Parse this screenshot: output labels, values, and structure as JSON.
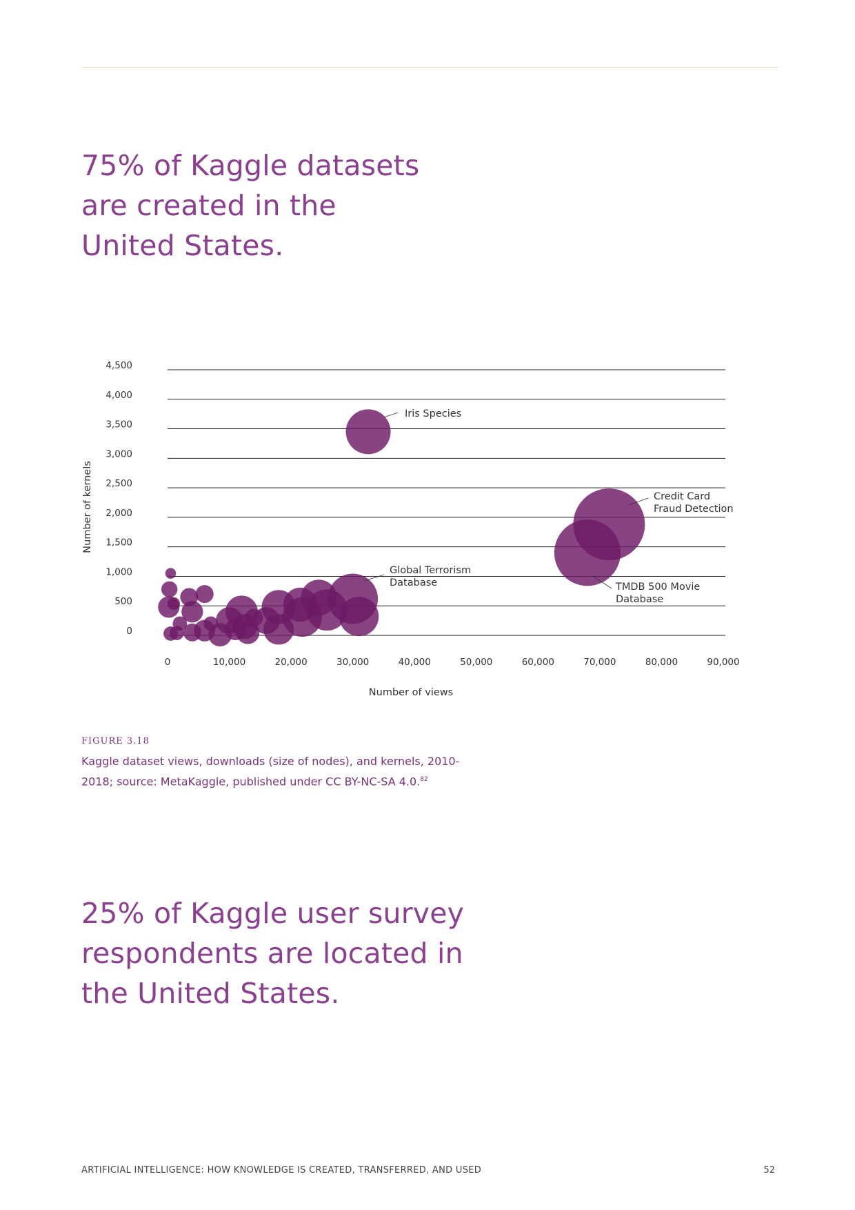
{
  "headline_1": [
    "75% of Kaggle datasets",
    "are created in the",
    "United States."
  ],
  "headline_2": [
    "25% of Kaggle user survey",
    "respondents are located in",
    "the United States."
  ],
  "figure": {
    "label": "FIGURE 3.18",
    "caption": [
      "Kaggle dataset views, downloads (size of nodes), and kernels, 2010-",
      "2018; source: MetaKaggle, published under CC BY-NC-SA 4.0.",
      "82"
    ]
  },
  "footer": {
    "title": "ARTIFICIAL INTELLIGENCE: HOW KNOWLEDGE IS CREATED, TRANSFERRED, AND USED",
    "page_number": "52"
  },
  "colors": {
    "headline": "#8a3f8f",
    "bubble": "#6e1a66",
    "caption": "#7a3378",
    "rule": "#f3d6c4"
  },
  "chart_data": {
    "type": "scatter",
    "xlabel": "Number of views",
    "ylabel": "Number of kernels",
    "xlim": [
      0,
      90000
    ],
    "ylim": [
      0,
      4500
    ],
    "xticks": [
      0,
      10000,
      20000,
      30000,
      40000,
      50000,
      60000,
      70000,
      80000,
      90000
    ],
    "xtick_labels": [
      "0",
      "10,000",
      "20,000",
      "30,000",
      "40,000",
      "50,000",
      "60,000",
      "70,000",
      "80,000",
      "90,000"
    ],
    "yticks": [
      0,
      500,
      1000,
      1500,
      2000,
      2500,
      3000,
      3500,
      4000,
      4500
    ],
    "ytick_labels": [
      "0",
      "500",
      "1,000",
      "1,500",
      "2,000",
      "2,500",
      "3,000",
      "3,500",
      "4,000",
      "4,500"
    ],
    "grid": "horizontal",
    "size_encoding": "downloads",
    "points": [
      {
        "x": 32500,
        "y": 3450,
        "size": 25,
        "label": "Iris Species"
      },
      {
        "x": 71500,
        "y": 1880,
        "size": 40,
        "label": "Credit Card Fraud Detection"
      },
      {
        "x": 68000,
        "y": 1400,
        "size": 37,
        "label": "TMDB 500 Movie Database"
      },
      {
        "x": 30000,
        "y": 620,
        "size": 28,
        "label": "Global Terrorism Database"
      },
      {
        "x": 31000,
        "y": 320,
        "size": 22
      },
      {
        "x": 24500,
        "y": 640,
        "size": 20
      },
      {
        "x": 25800,
        "y": 430,
        "size": 23
      },
      {
        "x": 21500,
        "y": 520,
        "size": 19
      },
      {
        "x": 21800,
        "y": 310,
        "size": 22
      },
      {
        "x": 18000,
        "y": 480,
        "size": 19
      },
      {
        "x": 18000,
        "y": 100,
        "size": 17
      },
      {
        "x": 16000,
        "y": 250,
        "size": 15
      },
      {
        "x": 12000,
        "y": 400,
        "size": 18
      },
      {
        "x": 12500,
        "y": 150,
        "size": 14
      },
      {
        "x": 13000,
        "y": 50,
        "size": 13
      },
      {
        "x": 10000,
        "y": 250,
        "size": 15
      },
      {
        "x": 11000,
        "y": 100,
        "size": 12
      },
      {
        "x": 8500,
        "y": 10,
        "size": 13
      },
      {
        "x": 6000,
        "y": 80,
        "size": 12
      },
      {
        "x": 6000,
        "y": 700,
        "size": 10
      },
      {
        "x": 4000,
        "y": 400,
        "size": 12
      },
      {
        "x": 3500,
        "y": 650,
        "size": 10
      },
      {
        "x": 4000,
        "y": 50,
        "size": 10
      },
      {
        "x": 2000,
        "y": 200,
        "size": 8
      },
      {
        "x": 200,
        "y": 480,
        "size": 12
      },
      {
        "x": 300,
        "y": 780,
        "size": 9
      },
      {
        "x": 500,
        "y": 1050,
        "size": 6
      },
      {
        "x": 500,
        "y": 30,
        "size": 8
      },
      {
        "x": 1500,
        "y": 40,
        "size": 8
      },
      {
        "x": 1000,
        "y": 540,
        "size": 7
      },
      {
        "x": 7000,
        "y": 200,
        "size": 8
      },
      {
        "x": 14000,
        "y": 300,
        "size": 10
      }
    ],
    "annotations": [
      {
        "text_lines": [
          "Iris Species"
        ],
        "point_index": 0
      },
      {
        "text_lines": [
          "Credit Card",
          "Fraud Detection"
        ],
        "point_index": 1
      },
      {
        "text_lines": [
          "TMDB 500 Movie",
          "Database"
        ],
        "point_index": 2
      },
      {
        "text_lines": [
          "Global Terrorism",
          "Database"
        ],
        "point_index": 3
      }
    ]
  }
}
